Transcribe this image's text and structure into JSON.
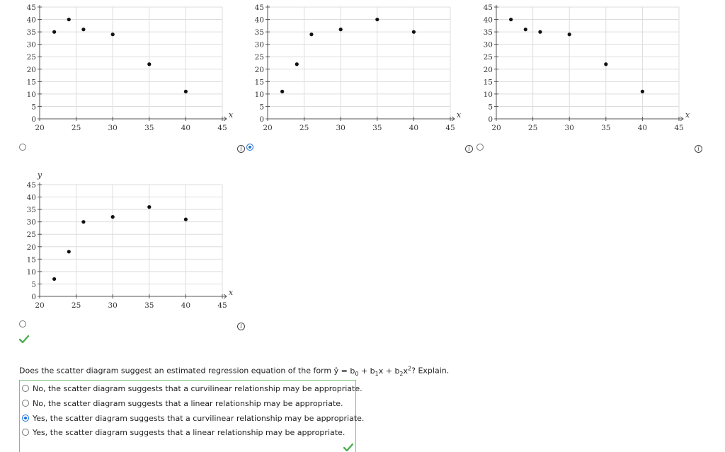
{
  "chart_data": [
    {
      "type": "scatter",
      "xlabel": "x",
      "ylabel": "",
      "xlim": [
        20,
        45
      ],
      "ylim": [
        0,
        45
      ],
      "xticks": [
        20,
        25,
        30,
        35,
        40,
        45
      ],
      "yticks": [
        0,
        5,
        10,
        15,
        20,
        25,
        30,
        35,
        40,
        45
      ],
      "grid": true,
      "points": [
        {
          "x": 22,
          "y": 35
        },
        {
          "x": 24,
          "y": 40
        },
        {
          "x": 26,
          "y": 36
        },
        {
          "x": 30,
          "y": 34
        },
        {
          "x": 35,
          "y": 22
        },
        {
          "x": 40,
          "y": 11
        }
      ]
    },
    {
      "type": "scatter",
      "xlabel": "x",
      "ylabel": "",
      "xlim": [
        20,
        45
      ],
      "ylim": [
        0,
        45
      ],
      "xticks": [
        20,
        25,
        30,
        35,
        40,
        45
      ],
      "yticks": [
        0,
        5,
        10,
        15,
        20,
        25,
        30,
        35,
        40,
        45
      ],
      "grid": true,
      "points": [
        {
          "x": 22,
          "y": 11
        },
        {
          "x": 24,
          "y": 22
        },
        {
          "x": 26,
          "y": 34
        },
        {
          "x": 30,
          "y": 36
        },
        {
          "x": 35,
          "y": 40
        },
        {
          "x": 40,
          "y": 35
        }
      ]
    },
    {
      "type": "scatter",
      "xlabel": "x",
      "ylabel": "",
      "xlim": [
        20,
        45
      ],
      "ylim": [
        0,
        45
      ],
      "xticks": [
        20,
        25,
        30,
        35,
        40,
        45
      ],
      "yticks": [
        0,
        5,
        10,
        15,
        20,
        25,
        30,
        35,
        40,
        45
      ],
      "grid": true,
      "points": [
        {
          "x": 22,
          "y": 40
        },
        {
          "x": 24,
          "y": 36
        },
        {
          "x": 26,
          "y": 35
        },
        {
          "x": 30,
          "y": 34
        },
        {
          "x": 35,
          "y": 22
        },
        {
          "x": 40,
          "y": 11
        }
      ]
    },
    {
      "type": "scatter",
      "xlabel": "x",
      "ylabel": "y",
      "xlim": [
        20,
        45
      ],
      "ylim": [
        0,
        45
      ],
      "xticks": [
        20,
        25,
        30,
        35,
        40,
        45
      ],
      "yticks": [
        0,
        5,
        10,
        15,
        20,
        25,
        30,
        35,
        40,
        45
      ],
      "grid": true,
      "points": [
        {
          "x": 22,
          "y": 7
        },
        {
          "x": 24,
          "y": 18
        },
        {
          "x": 26,
          "y": 30
        },
        {
          "x": 30,
          "y": 32
        },
        {
          "x": 35,
          "y": 36
        },
        {
          "x": 40,
          "y": 31
        }
      ]
    }
  ],
  "graph_choices": [
    {
      "selected": false
    },
    {
      "selected": true
    },
    {
      "selected": false
    },
    {
      "selected": false
    }
  ],
  "info_icon_glyph": "i",
  "question": {
    "prefix": "Does the scatter diagram suggest an estimated regression equation of the form ",
    "yhat": "ŷ",
    "eq_mid": " = b",
    "sub0": "0",
    "plus1": " + b",
    "sub1": "1",
    "x1": "x + b",
    "sub2": "2",
    "x2": "x",
    "sup2": "2",
    "suffix": "? Explain."
  },
  "answers": [
    {
      "label": "No, the scatter diagram suggests that a curvilinear relationship may be appropriate.",
      "selected": false
    },
    {
      "label": "No, the scatter diagram suggests that a linear relationship may be appropriate.",
      "selected": false
    },
    {
      "label": "Yes, the scatter diagram suggests that a curvilinear relationship may be appropriate.",
      "selected": true
    },
    {
      "label": "Yes, the scatter diagram suggests that a linear relationship may be appropriate.",
      "selected": false
    }
  ],
  "colors": {
    "correct": "#4caf50",
    "selected": "#1a6fd8",
    "grid": "#dddddd"
  }
}
